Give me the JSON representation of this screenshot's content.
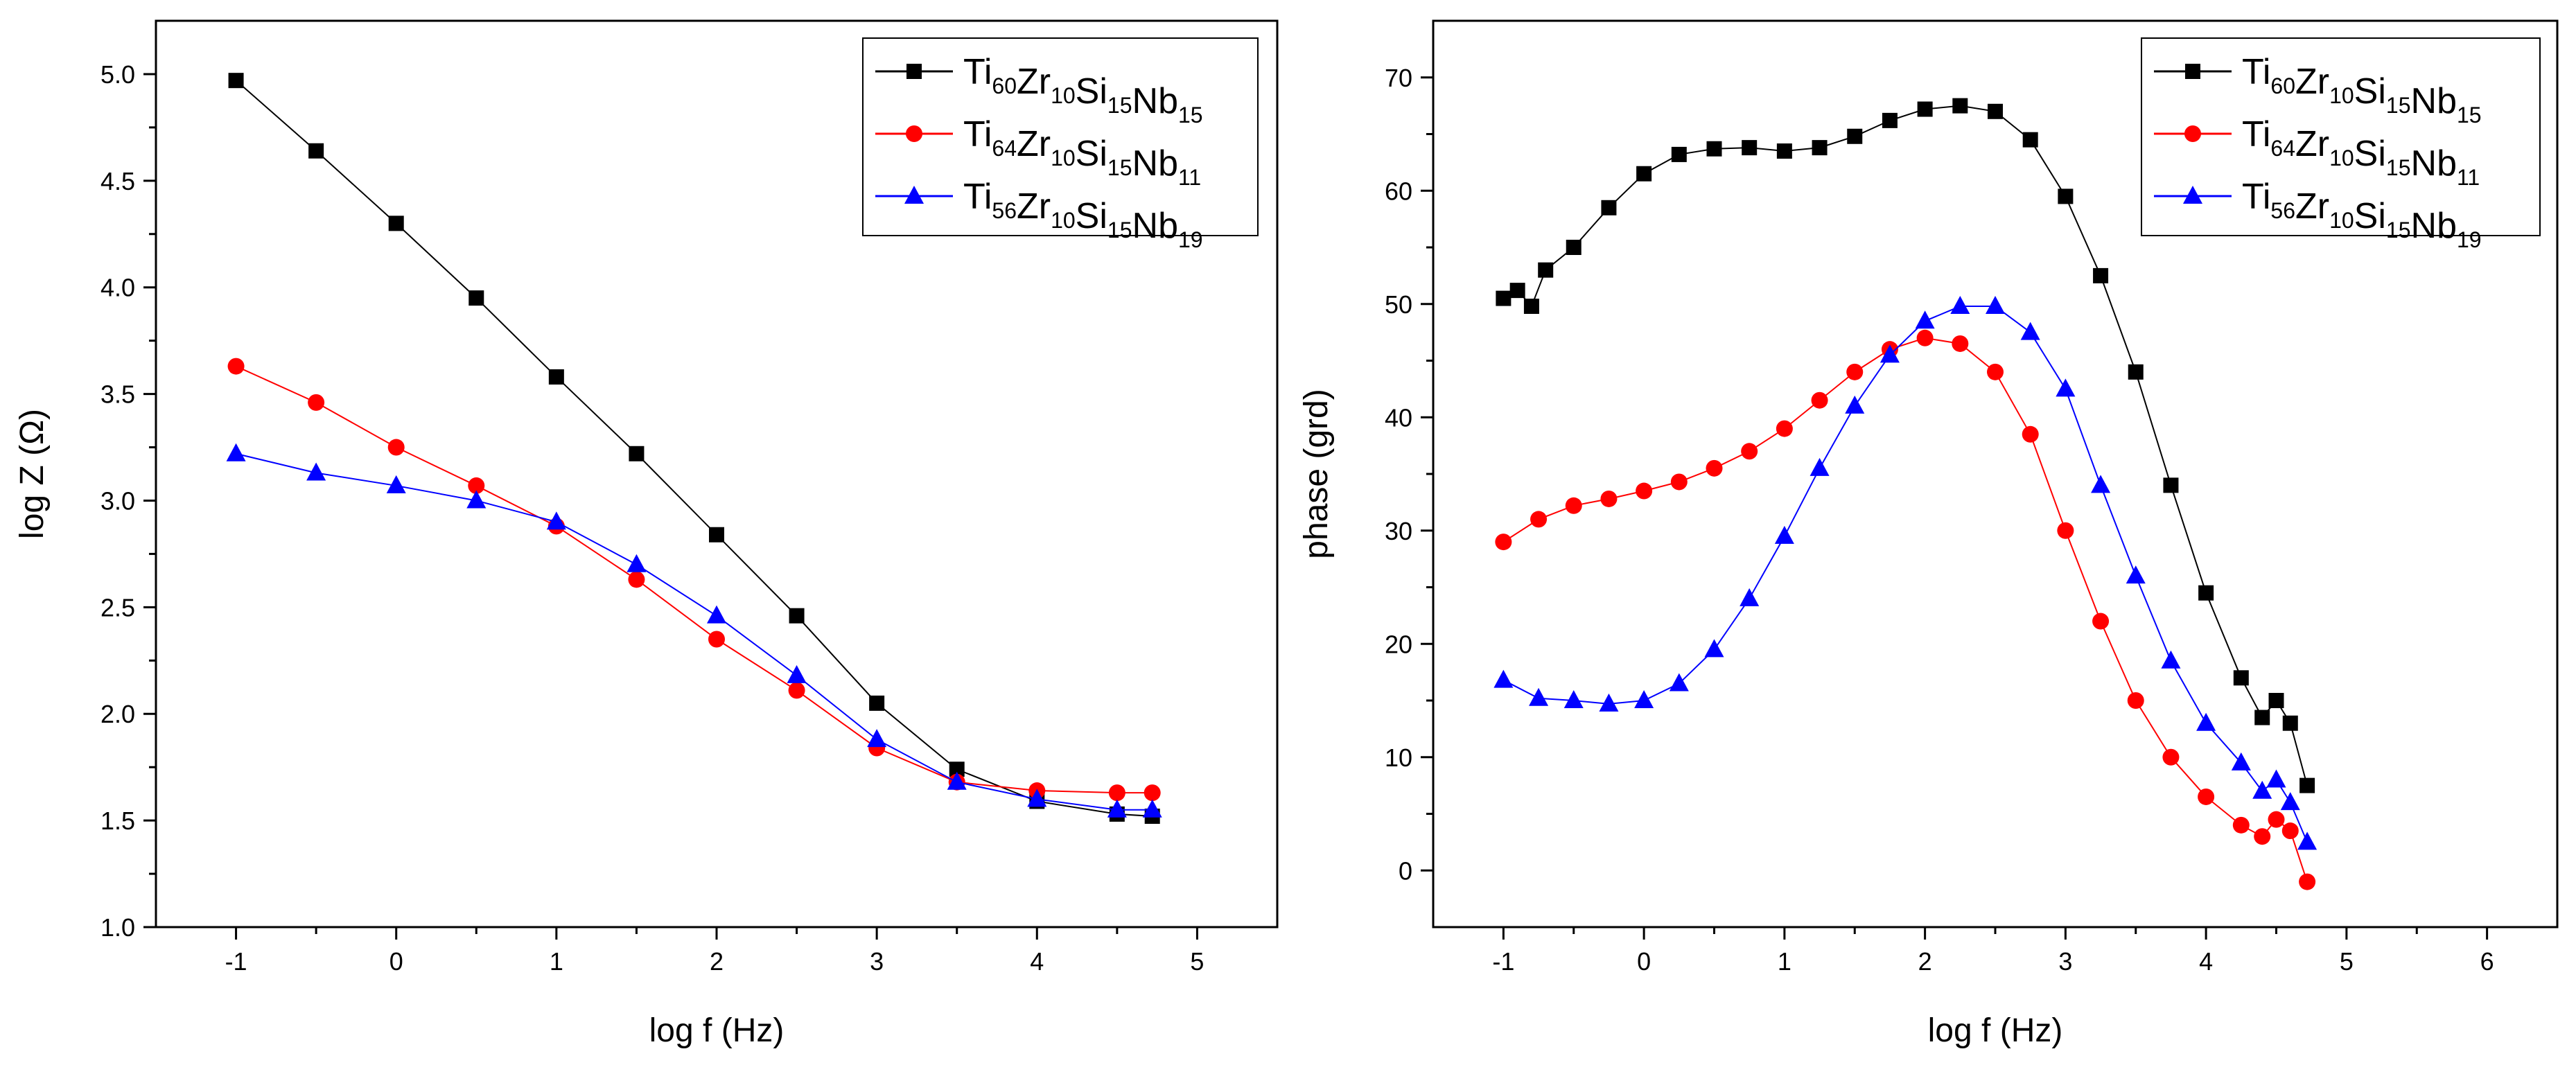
{
  "chart_data": [
    {
      "type": "scatter",
      "title": "",
      "xlabel": "log f (Hz)",
      "ylabel": "log Z (Ω)",
      "xlim": [
        -1.5,
        5.5
      ],
      "ylim": [
        1.0,
        5.25
      ],
      "xticks": [
        -1,
        0,
        1,
        2,
        3,
        4,
        5
      ],
      "xtick_labels": [
        "-1",
        "0",
        "1",
        "2",
        "3",
        "4",
        "5"
      ],
      "yticks": [
        1.0,
        1.5,
        2.0,
        2.5,
        3.0,
        3.5,
        4.0,
        4.5,
        5.0
      ],
      "ytick_labels": [
        "1.0",
        "1.5",
        "2.0",
        "2.5",
        "3.0",
        "3.5",
        "4.0",
        "4.5",
        "5.0"
      ],
      "legend_position": "top-right",
      "series": [
        {
          "name": "Ti60Zr10Si15Nb15",
          "legend_parts": [
            [
              "Ti",
              "60"
            ],
            [
              "Zr",
              "10"
            ],
            [
              "Si",
              "15"
            ],
            [
              "Nb",
              "15"
            ]
          ],
          "color": "#000000",
          "marker": "square",
          "x": [
            -1.0,
            -0.5,
            0.0,
            0.5,
            1.0,
            1.5,
            2.0,
            2.5,
            3.0,
            3.5,
            4.0,
            4.5,
            4.72
          ],
          "y": [
            4.97,
            4.64,
            4.3,
            3.95,
            3.58,
            3.22,
            2.84,
            2.46,
            2.05,
            1.74,
            1.59,
            1.53,
            1.52
          ]
        },
        {
          "name": "Ti64Zr10Si15Nb11",
          "legend_parts": [
            [
              "Ti",
              "64"
            ],
            [
              "Zr",
              "10"
            ],
            [
              "Si",
              "15"
            ],
            [
              "Nb",
              "11"
            ]
          ],
          "color": "#ff0000",
          "marker": "circle",
          "x": [
            -1.0,
            -0.5,
            0.0,
            0.5,
            1.0,
            1.5,
            2.0,
            2.5,
            3.0,
            3.5,
            4.0,
            4.5,
            4.72
          ],
          "y": [
            3.63,
            3.46,
            3.25,
            3.07,
            2.88,
            2.63,
            2.35,
            2.11,
            1.84,
            1.68,
            1.64,
            1.63,
            1.63
          ]
        },
        {
          "name": "Ti56Zr10Si15Nb19",
          "legend_parts": [
            [
              "Ti",
              "56"
            ],
            [
              "Zr",
              "10"
            ],
            [
              "Si",
              "15"
            ],
            [
              "Nb",
              "19"
            ]
          ],
          "color": "#0000ff",
          "marker": "triangle",
          "x": [
            -1.0,
            -0.5,
            0.0,
            0.5,
            1.0,
            1.5,
            2.0,
            2.5,
            3.0,
            3.5,
            4.0,
            4.5,
            4.72
          ],
          "y": [
            3.22,
            3.13,
            3.07,
            3.0,
            2.9,
            2.7,
            2.46,
            2.18,
            1.88,
            1.68,
            1.6,
            1.55,
            1.55
          ]
        }
      ]
    },
    {
      "type": "scatter",
      "title": "",
      "xlabel": "log f (Hz)",
      "ylabel": "phase (grd)",
      "xlim": [
        -1.5,
        6.5
      ],
      "ylim": [
        -5,
        75
      ],
      "xticks": [
        -1,
        0,
        1,
        2,
        3,
        4,
        5,
        6
      ],
      "xtick_labels": [
        "-1",
        "0",
        "1",
        "2",
        "3",
        "4",
        "5",
        "6"
      ],
      "yticks": [
        0,
        10,
        20,
        30,
        40,
        50,
        60,
        70
      ],
      "ytick_labels": [
        "0",
        "10",
        "20",
        "30",
        "40",
        "50",
        "60",
        "70"
      ],
      "legend_position": "top-right",
      "series": [
        {
          "name": "Ti60Zr10Si15Nb15",
          "legend_parts": [
            [
              "Ti",
              "60"
            ],
            [
              "Zr",
              "10"
            ],
            [
              "Si",
              "15"
            ],
            [
              "Nb",
              "15"
            ]
          ],
          "color": "#000000",
          "marker": "square",
          "x": [
            -1.0,
            -0.9,
            -0.8,
            -0.7,
            -0.5,
            -0.25,
            0.0,
            0.25,
            0.5,
            0.75,
            1.0,
            1.25,
            1.5,
            1.75,
            2.0,
            2.25,
            2.5,
            2.75,
            3.0,
            3.25,
            3.5,
            3.75,
            4.0,
            4.25,
            4.4,
            4.5,
            4.6,
            4.72
          ],
          "y": [
            50.5,
            51.2,
            49.8,
            53.0,
            55.0,
            58.5,
            61.5,
            63.2,
            63.7,
            63.8,
            63.5,
            63.8,
            64.8,
            66.2,
            67.2,
            67.5,
            67.0,
            64.5,
            59.5,
            52.5,
            44.0,
            34.0,
            24.5,
            17.0,
            13.5,
            15.0,
            13.0,
            7.5
          ]
        },
        {
          "name": "Ti64Zr10Si15Nb11",
          "legend_parts": [
            [
              "Ti",
              "64"
            ],
            [
              "Zr",
              "10"
            ],
            [
              "Si",
              "15"
            ],
            [
              "Nb",
              "11"
            ]
          ],
          "color": "#ff0000",
          "marker": "circle",
          "x": [
            -1.0,
            -0.75,
            -0.5,
            -0.25,
            0.0,
            0.25,
            0.5,
            0.75,
            1.0,
            1.25,
            1.5,
            1.75,
            2.0,
            2.25,
            2.5,
            2.75,
            3.0,
            3.25,
            3.5,
            3.75,
            4.0,
            4.25,
            4.4,
            4.5,
            4.6,
            4.72
          ],
          "y": [
            29.0,
            31.0,
            32.2,
            32.8,
            33.5,
            34.3,
            35.5,
            37.0,
            39.0,
            41.5,
            44.0,
            46.0,
            47.0,
            46.5,
            44.0,
            38.5,
            30.0,
            22.0,
            15.0,
            10.0,
            6.5,
            4.0,
            3.0,
            4.5,
            3.5,
            -1.0
          ]
        },
        {
          "name": "Ti56Zr10Si15Nb19",
          "legend_parts": [
            [
              "Ti",
              "56"
            ],
            [
              "Zr",
              "10"
            ],
            [
              "Si",
              "15"
            ],
            [
              "Nb",
              "19"
            ]
          ],
          "color": "#0000ff",
          "marker": "triangle",
          "x": [
            -1.0,
            -0.75,
            -0.5,
            -0.25,
            0.0,
            0.25,
            0.5,
            0.75,
            1.0,
            1.25,
            1.5,
            1.75,
            2.0,
            2.25,
            2.5,
            2.75,
            3.0,
            3.25,
            3.5,
            3.75,
            4.0,
            4.25,
            4.4,
            4.5,
            4.6,
            4.72
          ],
          "y": [
            16.8,
            15.2,
            15.0,
            14.7,
            15.0,
            16.5,
            19.5,
            24.0,
            29.5,
            35.5,
            41.0,
            45.5,
            48.5,
            49.8,
            49.8,
            47.5,
            42.5,
            34.0,
            26.0,
            18.5,
            13.0,
            9.5,
            7.0,
            8.0,
            6.0,
            2.5
          ]
        }
      ]
    }
  ]
}
